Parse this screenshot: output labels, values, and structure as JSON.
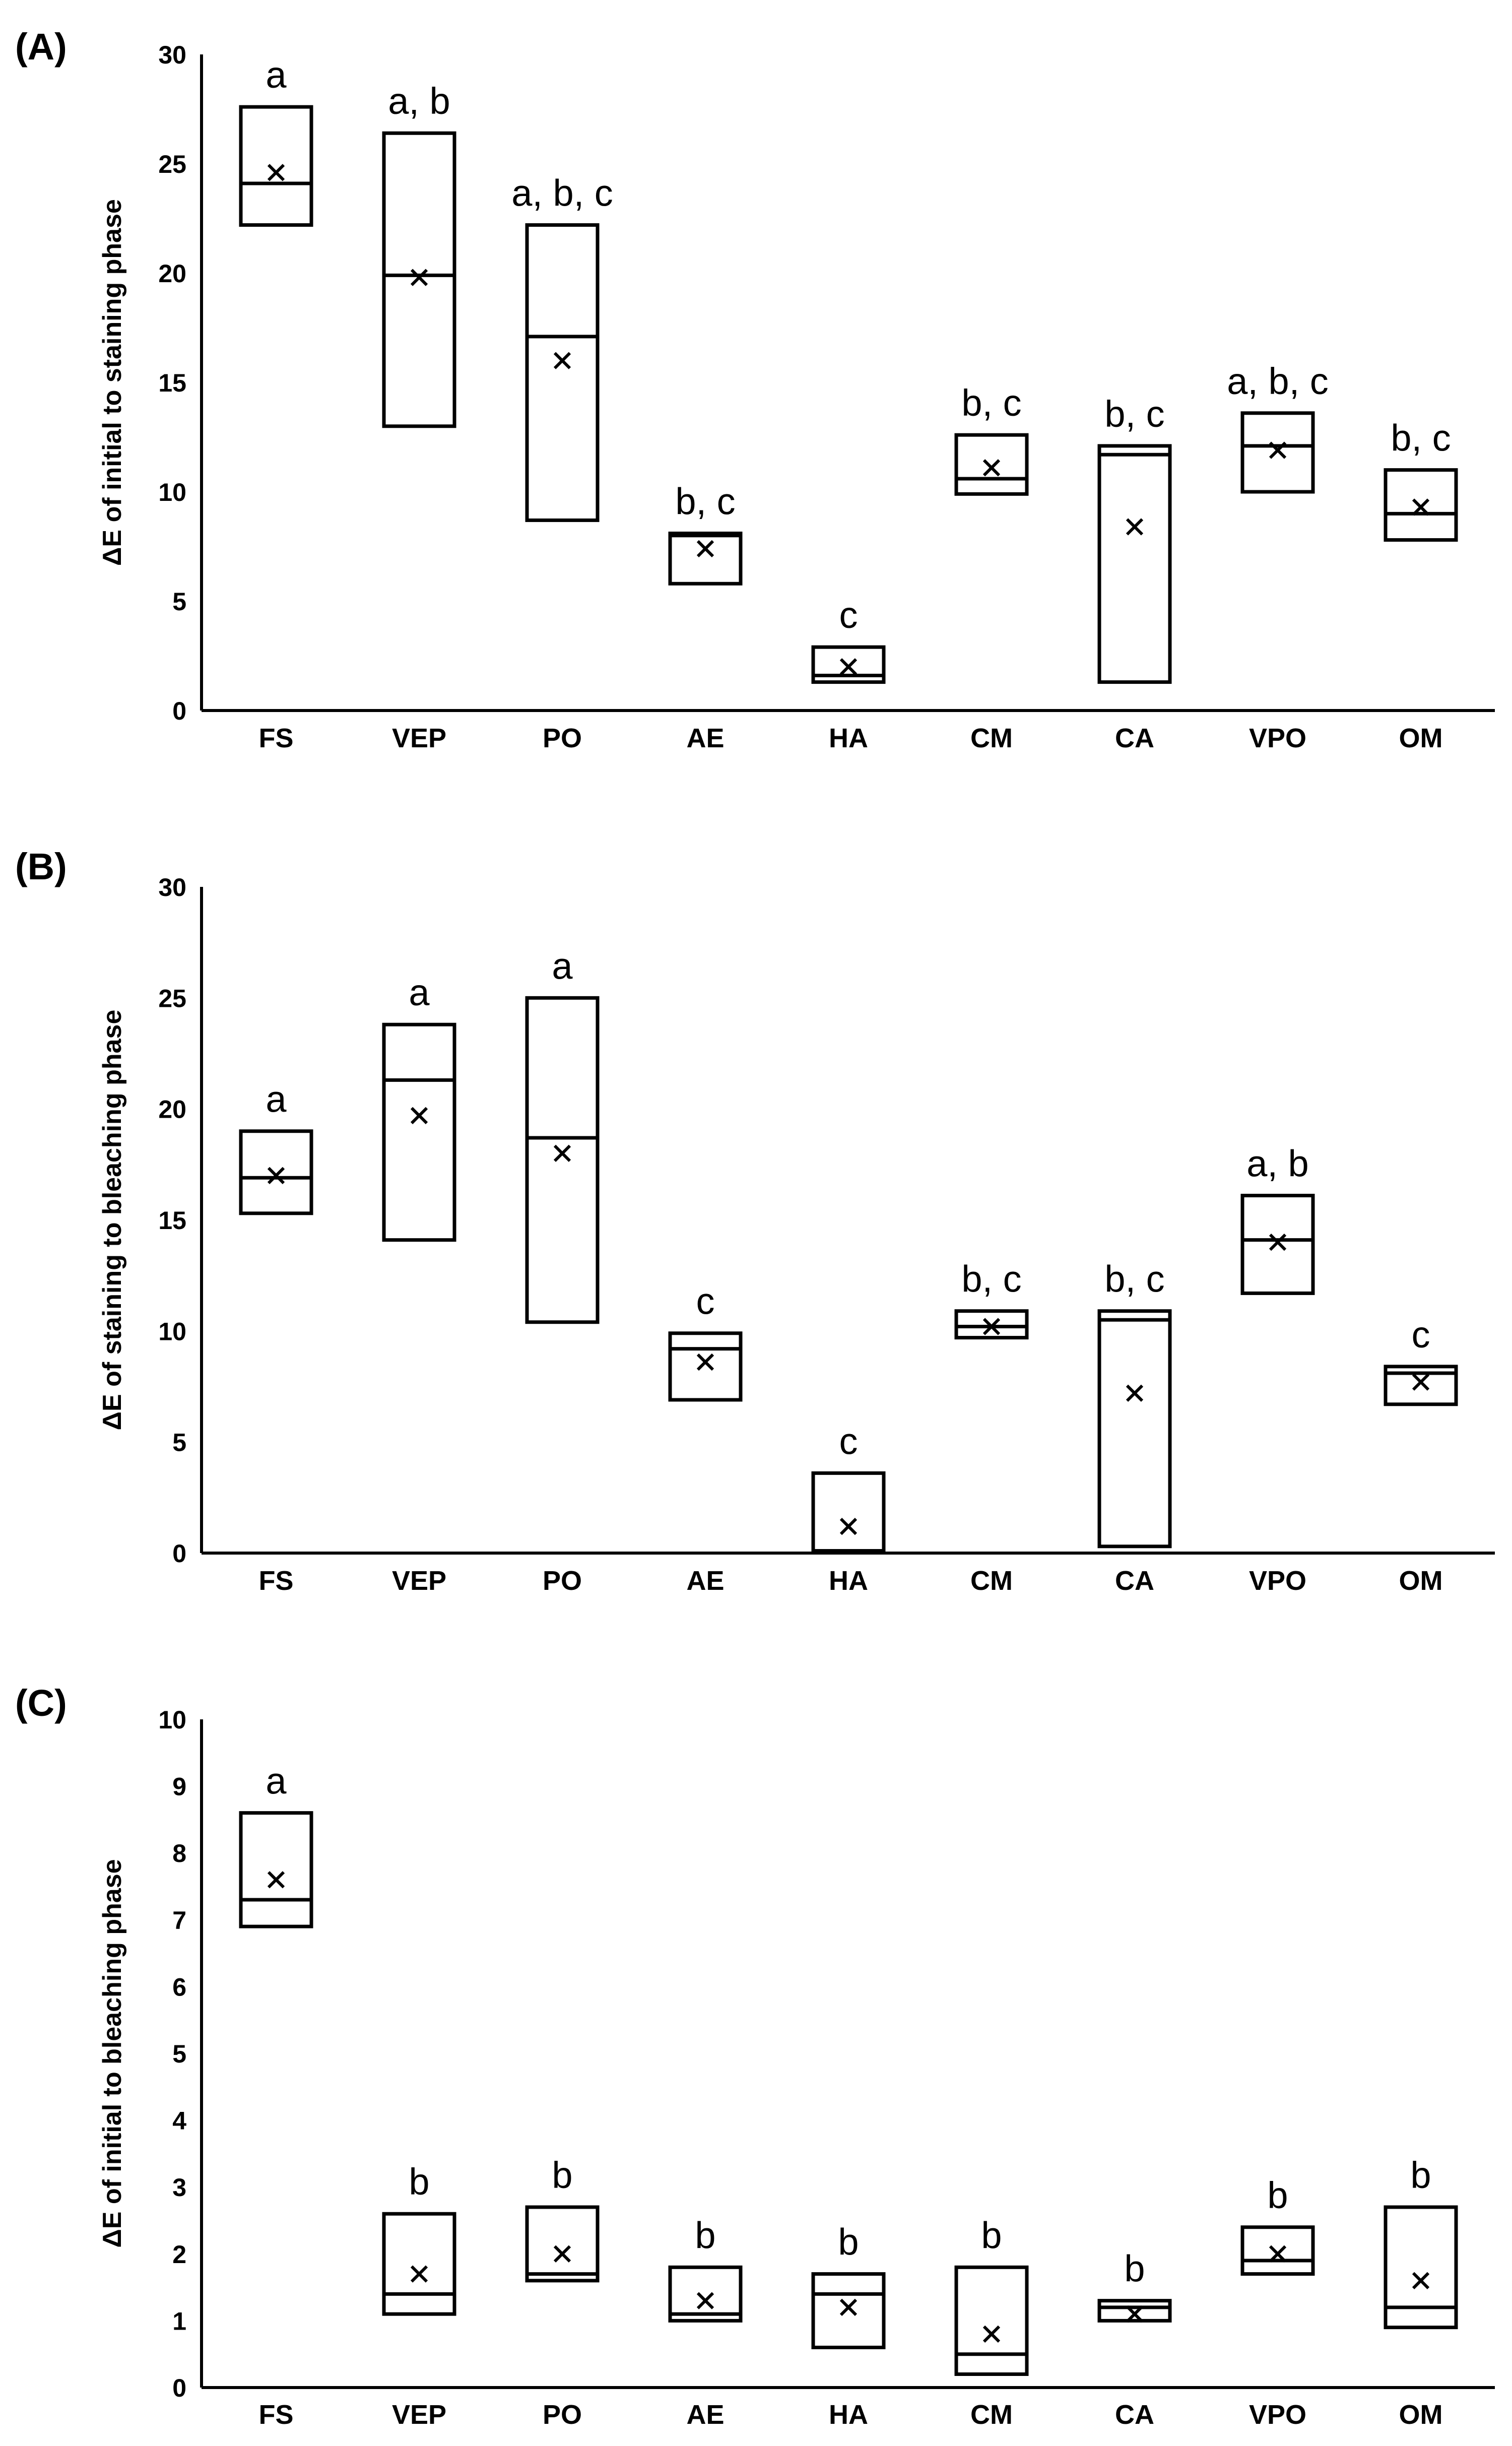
{
  "figure": {
    "background": "#ffffff",
    "ink": "#000000"
  },
  "chart_data": [
    {
      "type": "box",
      "panel_label": "(A)",
      "ylabel": "ΔE of initial to staining phase",
      "xlabel": "",
      "ylim": [
        0,
        30
      ],
      "yticks": [
        "0",
        "5",
        "10",
        "15",
        "20",
        "25",
        "30"
      ],
      "grid": false,
      "categories": [
        "FS",
        "VEP",
        "PO",
        "AE",
        "HA",
        "CM",
        "CA",
        "VPO",
        "OM"
      ],
      "box_low": [
        22.2,
        13.0,
        8.7,
        5.8,
        1.3,
        9.9,
        1.3,
        10.0,
        7.8
      ],
      "box_high": [
        27.6,
        26.4,
        22.2,
        8.1,
        2.9,
        12.6,
        12.1,
        13.6,
        11.0
      ],
      "median": [
        24.1,
        19.9,
        17.1,
        8.0,
        1.6,
        10.6,
        11.7,
        12.1,
        9.0
      ],
      "mean": [
        24.6,
        19.8,
        16.0,
        7.4,
        2.0,
        11.1,
        8.4,
        11.9,
        9.3
      ],
      "letters": [
        "a",
        "a, b",
        "a, b, c",
        "b, c",
        "c",
        "b, c",
        "b, c",
        "a, b, c",
        "b, c"
      ]
    },
    {
      "type": "box",
      "panel_label": "(B)",
      "ylabel": "ΔE of staining to bleaching phase",
      "xlabel": "",
      "ylim": [
        0,
        30
      ],
      "yticks": [
        "0",
        "5",
        "10",
        "15",
        "20",
        "25",
        "30"
      ],
      "grid": false,
      "categories": [
        "FS",
        "VEP",
        "PO",
        "AE",
        "HA",
        "CM",
        "CA",
        "VPO",
        "OM"
      ],
      "box_low": [
        15.3,
        14.1,
        10.4,
        6.9,
        0.1,
        9.7,
        0.3,
        11.7,
        6.7
      ],
      "box_high": [
        19.0,
        23.8,
        25.0,
        9.9,
        3.6,
        10.9,
        10.9,
        16.1,
        8.4
      ],
      "median": [
        16.9,
        21.3,
        18.7,
        9.2,
        0.1,
        10.2,
        10.5,
        14.1,
        8.1
      ],
      "mean": [
        17.0,
        19.7,
        18.0,
        8.6,
        1.2,
        10.2,
        7.2,
        14.0,
        7.7
      ],
      "letters": [
        "a",
        "a",
        "a",
        "c",
        "c",
        "b, c",
        "b, c",
        "a, b",
        "c"
      ]
    },
    {
      "type": "box",
      "panel_label": "(C)",
      "ylabel": "ΔE of initial to bleaching phase",
      "xlabel": "",
      "ylim": [
        0,
        10
      ],
      "yticks": [
        "0",
        "1",
        "2",
        "3",
        "4",
        "5",
        "6",
        "7",
        "8",
        "9",
        "10"
      ],
      "grid": false,
      "categories": [
        "FS",
        "VEP",
        "PO",
        "AE",
        "HA",
        "CM",
        "CA",
        "VPO",
        "OM"
      ],
      "box_low": [
        6.9,
        1.1,
        1.6,
        1.0,
        0.6,
        0.2,
        1.0,
        1.7,
        0.9
      ],
      "box_high": [
        8.6,
        2.6,
        2.7,
        1.8,
        1.7,
        1.8,
        1.3,
        2.4,
        2.7
      ],
      "median": [
        7.3,
        1.4,
        1.7,
        1.1,
        1.4,
        0.5,
        1.2,
        1.9,
        1.2
      ],
      "mean": [
        7.6,
        1.7,
        2.0,
        1.3,
        1.2,
        0.8,
        1.1,
        2.0,
        1.6
      ],
      "letters": [
        "a",
        "b",
        "b",
        "b",
        "b",
        "b",
        "b",
        "b",
        "b"
      ]
    }
  ]
}
